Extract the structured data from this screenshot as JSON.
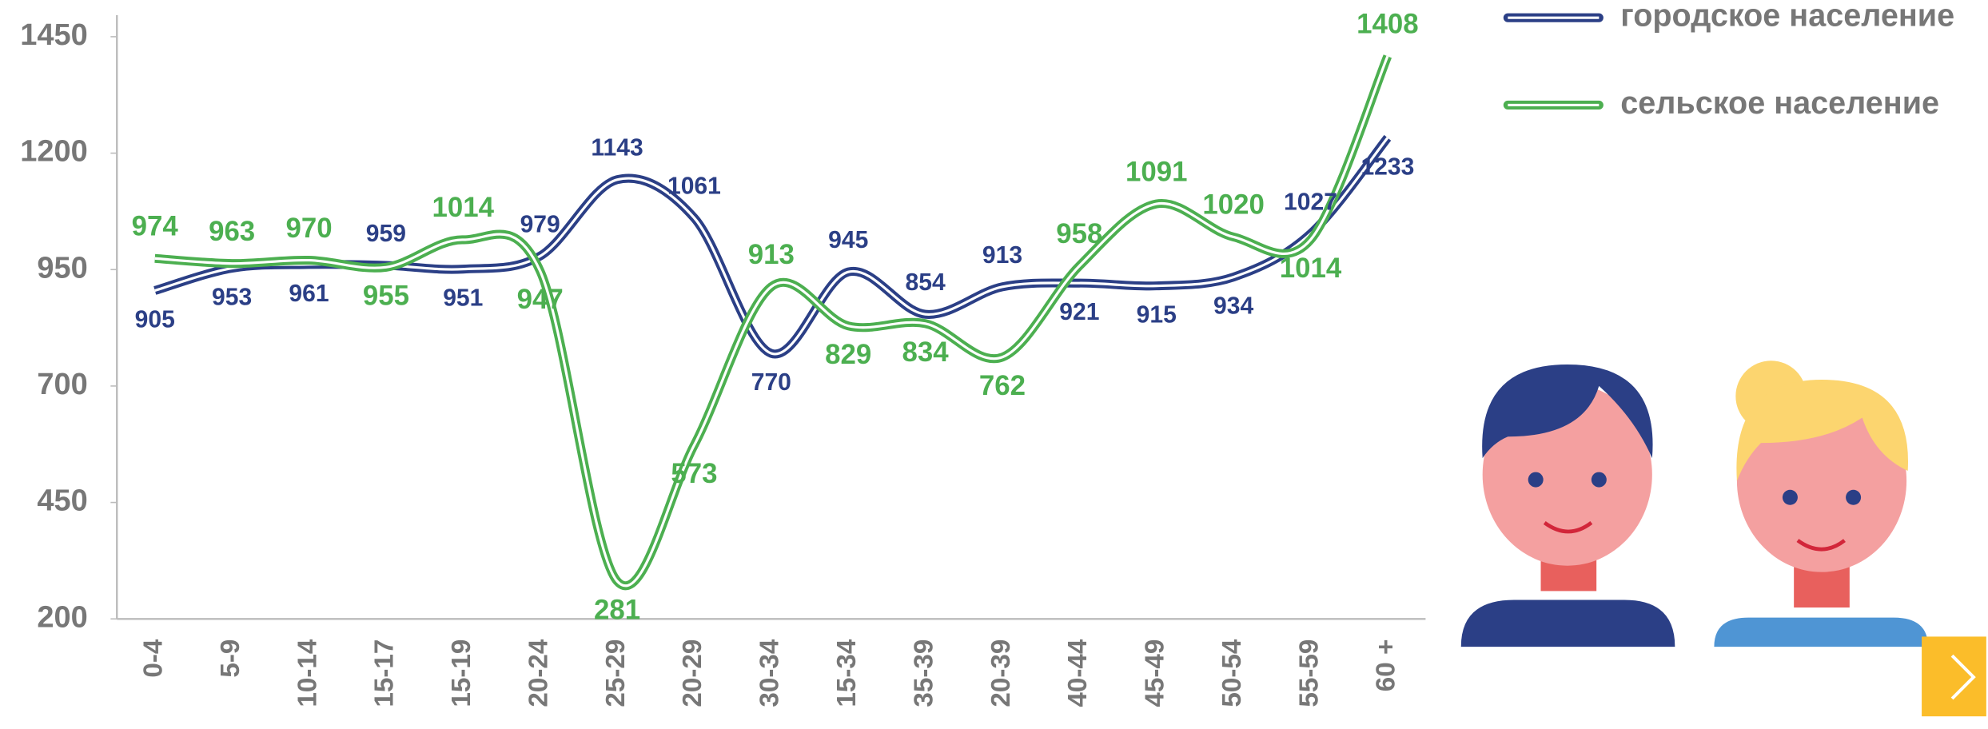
{
  "chart_data": {
    "type": "line",
    "categories": [
      "0-4",
      "5-9",
      "10-14",
      "15-17",
      "15-19",
      "20-24",
      "25-29",
      "20-29",
      "30-34",
      "15-34",
      "35-39",
      "20-39",
      "40-44",
      "45-49",
      "50-54",
      "55-59",
      "60 +"
    ],
    "series": [
      {
        "name": "городское население",
        "color": "#2b3f86",
        "values": [
          905,
          953,
          961,
          959,
          951,
          979,
          1143,
          1061,
          770,
          945,
          854,
          913,
          921,
          915,
          934,
          1027,
          1233
        ]
      },
      {
        "name": "сельское население",
        "color": "#4caf50",
        "values": [
          974,
          963,
          970,
          955,
          1014,
          947,
          281,
          573,
          913,
          829,
          834,
          762,
          958,
          1091,
          1020,
          1014,
          1408
        ]
      }
    ],
    "ylim": [
      200,
      1450
    ],
    "yticks": [
      200,
      450,
      700,
      950,
      1200,
      1450
    ],
    "legend": "top-right"
  }
}
